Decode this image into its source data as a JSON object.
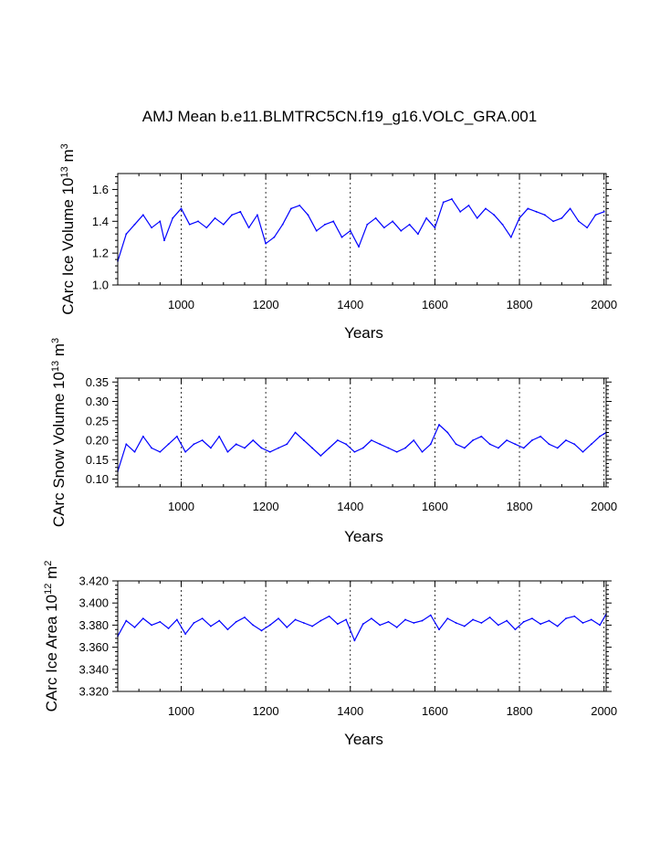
{
  "title": "AMJ Mean b.e11.BLMTRC5CN.f19_g16.VOLC_GRA.001",
  "colors": {
    "series": "#0000ff",
    "axis": "#000000",
    "background": "#ffffff"
  },
  "chart_data": [
    {
      "type": "line",
      "name": "ice-volume",
      "ylabel_main": "CArc Ice Volume 10",
      "ylabel_exp": "13",
      "ylabel_unit": " m",
      "ylabel_unit_exp": "3",
      "xlabel": "Years",
      "xlim": [
        850,
        2005
      ],
      "ylim": [
        1.0,
        1.7
      ],
      "xticks": [
        1000,
        1200,
        1400,
        1600,
        1800,
        2000
      ],
      "yticks": [
        1.0,
        1.2,
        1.4,
        1.6
      ],
      "ytick_labels": [
        "1.0",
        "1.2",
        "1.4",
        "1.6"
      ],
      "grid_x": true,
      "series": [
        {
          "name": "CArc Ice Volume",
          "x": [
            850,
            870,
            890,
            910,
            930,
            950,
            960,
            980,
            1000,
            1020,
            1040,
            1060,
            1080,
            1100,
            1120,
            1140,
            1160,
            1180,
            1200,
            1220,
            1240,
            1260,
            1280,
            1300,
            1320,
            1340,
            1360,
            1380,
            1400,
            1420,
            1440,
            1460,
            1480,
            1500,
            1520,
            1540,
            1560,
            1580,
            1600,
            1620,
            1640,
            1660,
            1680,
            1700,
            1720,
            1740,
            1760,
            1780,
            1800,
            1820,
            1840,
            1860,
            1880,
            1900,
            1920,
            1940,
            1960,
            1980,
            2000
          ],
          "values": [
            1.15,
            1.32,
            1.38,
            1.44,
            1.36,
            1.4,
            1.28,
            1.42,
            1.48,
            1.38,
            1.4,
            1.36,
            1.42,
            1.38,
            1.44,
            1.46,
            1.36,
            1.44,
            1.26,
            1.3,
            1.38,
            1.48,
            1.5,
            1.44,
            1.34,
            1.38,
            1.4,
            1.3,
            1.34,
            1.24,
            1.38,
            1.42,
            1.36,
            1.4,
            1.34,
            1.38,
            1.32,
            1.42,
            1.36,
            1.52,
            1.54,
            1.46,
            1.5,
            1.42,
            1.48,
            1.44,
            1.38,
            1.3,
            1.42,
            1.48,
            1.46,
            1.44,
            1.4,
            1.42,
            1.48,
            1.4,
            1.36,
            1.44,
            1.46
          ]
        }
      ]
    },
    {
      "type": "line",
      "name": "snow-volume",
      "ylabel_main": "CArc Snow Volume 10",
      "ylabel_exp": "13",
      "ylabel_unit": " m",
      "ylabel_unit_exp": "3",
      "xlabel": "Years",
      "xlim": [
        850,
        2005
      ],
      "ylim": [
        0.08,
        0.36
      ],
      "xticks": [
        1000,
        1200,
        1400,
        1600,
        1800,
        2000
      ],
      "yticks": [
        0.1,
        0.15,
        0.2,
        0.25,
        0.3,
        0.35
      ],
      "ytick_labels": [
        "0.10",
        "0.15",
        "0.20",
        "0.25",
        "0.30",
        "0.35"
      ],
      "grid_x": true,
      "series": [
        {
          "name": "CArc Snow Volume",
          "x": [
            850,
            870,
            890,
            910,
            930,
            950,
            970,
            990,
            1010,
            1030,
            1050,
            1070,
            1090,
            1110,
            1130,
            1150,
            1170,
            1190,
            1210,
            1230,
            1250,
            1270,
            1290,
            1310,
            1330,
            1350,
            1370,
            1390,
            1410,
            1430,
            1450,
            1470,
            1490,
            1510,
            1530,
            1550,
            1570,
            1590,
            1610,
            1630,
            1650,
            1670,
            1690,
            1710,
            1730,
            1750,
            1770,
            1790,
            1810,
            1830,
            1850,
            1870,
            1890,
            1910,
            1930,
            1950,
            1970,
            1990,
            2005
          ],
          "values": [
            0.12,
            0.19,
            0.17,
            0.21,
            0.18,
            0.17,
            0.19,
            0.21,
            0.17,
            0.19,
            0.2,
            0.18,
            0.21,
            0.17,
            0.19,
            0.18,
            0.2,
            0.18,
            0.17,
            0.18,
            0.19,
            0.22,
            0.2,
            0.18,
            0.16,
            0.18,
            0.2,
            0.19,
            0.17,
            0.18,
            0.2,
            0.19,
            0.18,
            0.17,
            0.18,
            0.2,
            0.17,
            0.19,
            0.24,
            0.22,
            0.19,
            0.18,
            0.2,
            0.21,
            0.19,
            0.18,
            0.2,
            0.19,
            0.18,
            0.2,
            0.21,
            0.19,
            0.18,
            0.2,
            0.19,
            0.17,
            0.19,
            0.21,
            0.22
          ]
        }
      ]
    },
    {
      "type": "line",
      "name": "ice-area",
      "ylabel_main": "CArc Ice Area 10",
      "ylabel_exp": "12",
      "ylabel_unit": " m",
      "ylabel_unit_exp": "2",
      "xlabel": "Years",
      "xlim": [
        850,
        2005
      ],
      "ylim": [
        3.32,
        3.42
      ],
      "xticks": [
        1000,
        1200,
        1400,
        1600,
        1800,
        2000
      ],
      "yticks": [
        3.32,
        3.34,
        3.36,
        3.38,
        3.4,
        3.42
      ],
      "ytick_labels": [
        "3.320",
        "3.340",
        "3.360",
        "3.380",
        "3.400",
        "3.420"
      ],
      "grid_x": true,
      "series": [
        {
          "name": "CArc Ice Area",
          "x": [
            850,
            870,
            890,
            910,
            930,
            950,
            970,
            990,
            1010,
            1030,
            1050,
            1070,
            1090,
            1110,
            1130,
            1150,
            1170,
            1190,
            1210,
            1230,
            1250,
            1270,
            1290,
            1310,
            1330,
            1350,
            1370,
            1390,
            1410,
            1430,
            1450,
            1470,
            1490,
            1510,
            1530,
            1550,
            1570,
            1590,
            1610,
            1630,
            1650,
            1670,
            1690,
            1710,
            1730,
            1750,
            1770,
            1790,
            1810,
            1830,
            1850,
            1870,
            1890,
            1910,
            1930,
            1950,
            1970,
            1990,
            2005
          ],
          "values": [
            3.37,
            3.384,
            3.378,
            3.386,
            3.38,
            3.383,
            3.377,
            3.385,
            3.372,
            3.382,
            3.386,
            3.379,
            3.384,
            3.376,
            3.383,
            3.387,
            3.38,
            3.375,
            3.38,
            3.386,
            3.378,
            3.385,
            3.382,
            3.379,
            3.384,
            3.388,
            3.381,
            3.385,
            3.366,
            3.381,
            3.386,
            3.38,
            3.383,
            3.378,
            3.385,
            3.382,
            3.384,
            3.389,
            3.376,
            3.386,
            3.382,
            3.379,
            3.385,
            3.382,
            3.387,
            3.38,
            3.384,
            3.376,
            3.383,
            3.386,
            3.381,
            3.384,
            3.379,
            3.386,
            3.388,
            3.382,
            3.385,
            3.38,
            3.39
          ]
        }
      ]
    }
  ]
}
